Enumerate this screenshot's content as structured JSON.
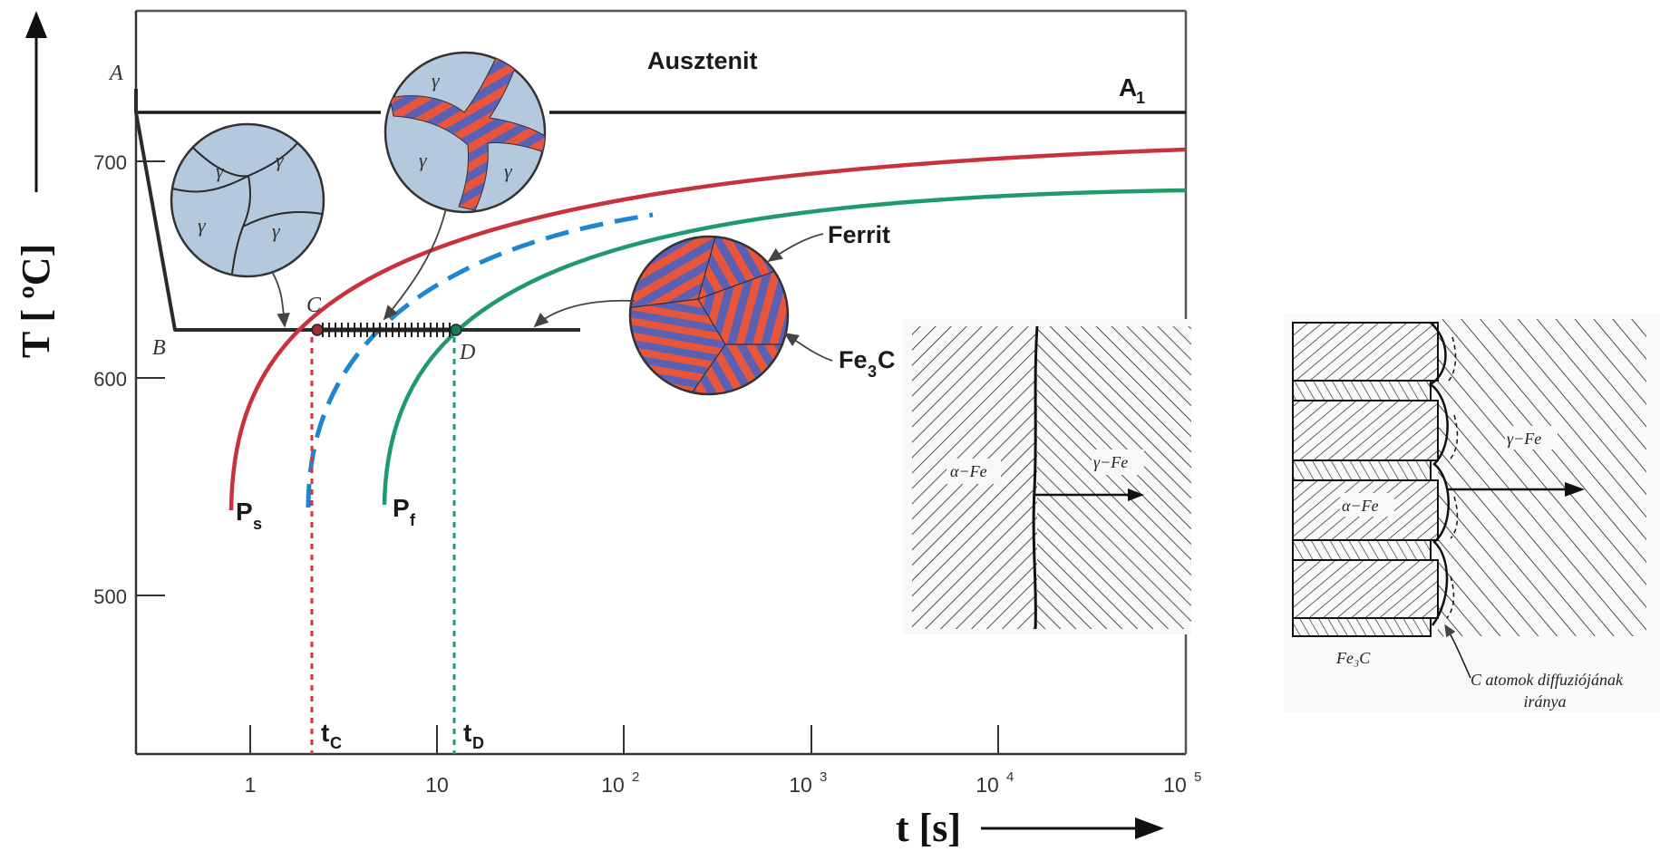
{
  "axes": {
    "y_title": "T [ ºC]",
    "x_title": "t [s]",
    "y_ticks": [
      "700",
      "600",
      "500"
    ],
    "x_ticks": [
      {
        "base": "1",
        "exp": ""
      },
      {
        "base": "10",
        "exp": ""
      },
      {
        "base": "10",
        "exp": "2"
      },
      {
        "base": "10",
        "exp": "3"
      },
      {
        "base": "10",
        "exp": "4"
      },
      {
        "base": "10",
        "exp": "5"
      }
    ]
  },
  "labels": {
    "austenite": "Ausztenit",
    "a1_main": "A",
    "a1_sub": "1",
    "ferrite": "Ferrit",
    "fe3c_a": "Fe",
    "fe3c_sub": "3",
    "fe3c_b": "C",
    "ps_main": "P",
    "ps_sub": "s",
    "pf_main": "P",
    "pf_sub": "f",
    "tc_main": "t",
    "tc_sub": "C",
    "td_main": "t",
    "td_sub": "D",
    "point_a": "A",
    "point_b": "B",
    "point_c": "C",
    "point_d": "D"
  },
  "micro": {
    "gamma": "γ"
  },
  "inset1": {
    "alpha": "α−Fe",
    "gamma": "γ−Fe"
  },
  "inset2": {
    "alpha": "α−Fe",
    "gamma": "γ−Fe",
    "fe3c": "Fe₃C",
    "note_line1": "C atomok diffuziójának",
    "note_line2": "iránya"
  },
  "colors": {
    "ps_curve": "#c8323c",
    "pf_curve": "#1f9a68",
    "mid_curve": "#1e86d0",
    "tc_line": "#d8323c",
    "td_line": "#1f9a80",
    "grain_fill": "#b4c8de",
    "lamella_red": "#e8553a",
    "lamella_blue": "#5a60b4"
  }
}
